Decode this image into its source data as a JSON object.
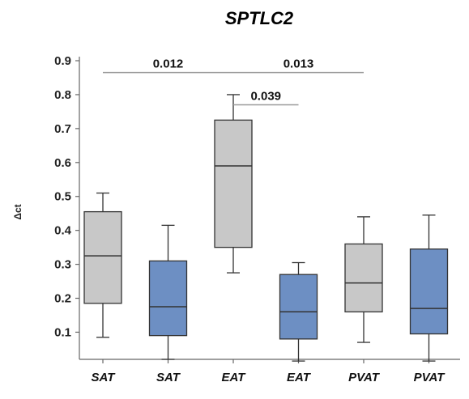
{
  "chart_data": {
    "type": "box",
    "title": "SPTLC2",
    "xlabel": "",
    "ylabel": "Δct",
    "ylim": [
      0.02,
      0.9
    ],
    "yticks": [
      "0.1",
      "0.2",
      "0.3",
      "0.4",
      "0.5",
      "0.6",
      "0.7",
      "0.8",
      "0.9"
    ],
    "categories": [
      "SAT",
      "SAT",
      "EAT",
      "EAT",
      "PVAT",
      "PVAT"
    ],
    "boxes": [
      {
        "category": "SAT",
        "color": "#c8c8c8",
        "min": 0.085,
        "q1": 0.185,
        "median": 0.325,
        "q3": 0.455,
        "max": 0.51
      },
      {
        "category": "SAT",
        "color": "#6d8fc3",
        "min": 0.02,
        "q1": 0.09,
        "median": 0.175,
        "q3": 0.31,
        "max": 0.415
      },
      {
        "category": "EAT",
        "color": "#c8c8c8",
        "min": 0.275,
        "q1": 0.35,
        "median": 0.59,
        "q3": 0.725,
        "max": 0.8
      },
      {
        "category": "EAT",
        "color": "#6d8fc3",
        "min": 0.015,
        "q1": 0.08,
        "median": 0.16,
        "q3": 0.27,
        "max": 0.305
      },
      {
        "category": "PVAT",
        "color": "#c8c8c8",
        "min": 0.07,
        "q1": 0.16,
        "median": 0.245,
        "q3": 0.36,
        "max": 0.44
      },
      {
        "category": "PVAT",
        "color": "#6d8fc3",
        "min": 0.015,
        "q1": 0.095,
        "median": 0.17,
        "q3": 0.345,
        "max": 0.445
      }
    ],
    "significance": [
      {
        "from": 0,
        "to": 2,
        "y": 0.865,
        "label": "0.012"
      },
      {
        "from": 2,
        "to": 4,
        "y": 0.865,
        "label": "0.013"
      },
      {
        "from": 2,
        "to": 3,
        "y": 0.77,
        "label": "0.039"
      }
    ],
    "grid": false,
    "legend": "none"
  }
}
